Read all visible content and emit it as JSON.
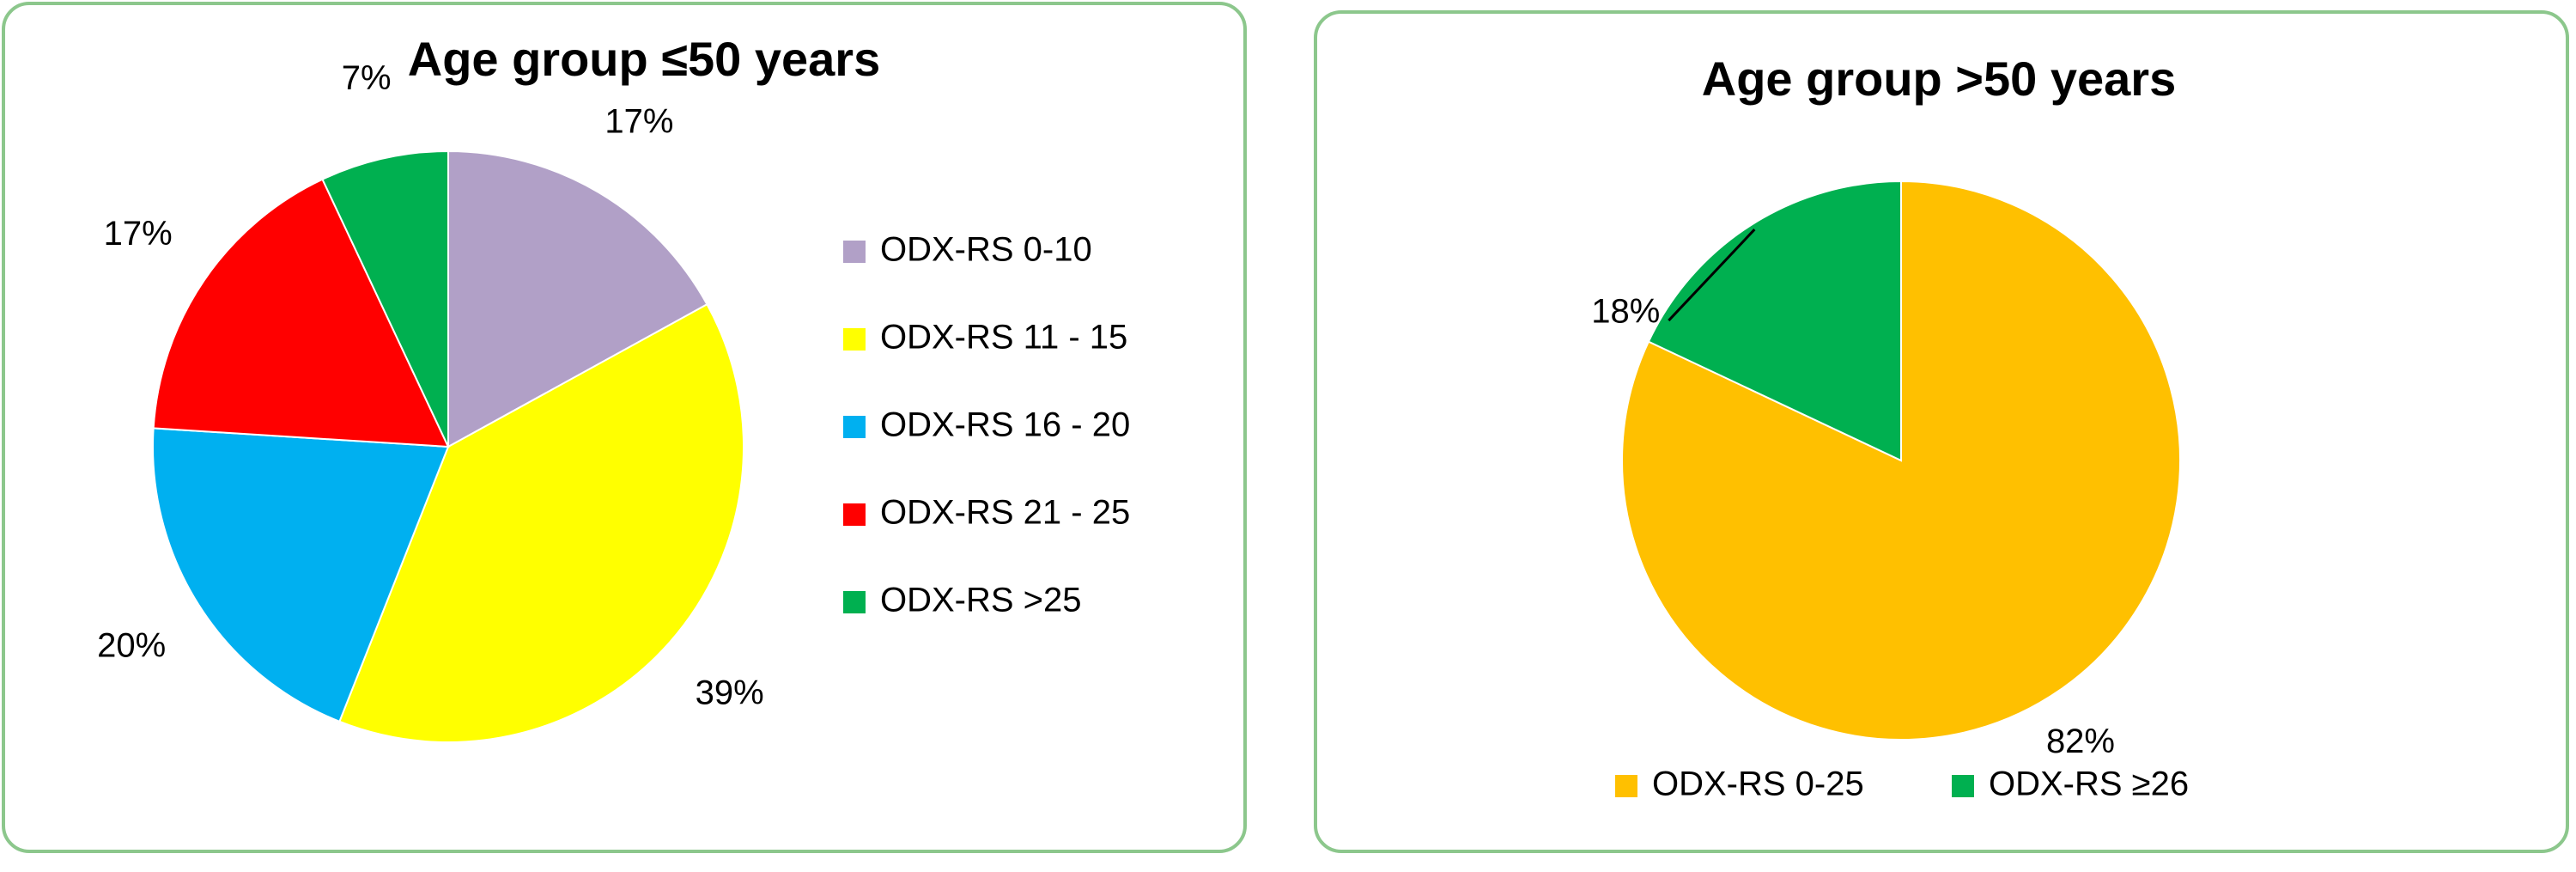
{
  "chart_data": [
    {
      "type": "pie",
      "title": "Age group ≤50 years",
      "categories": [
        "ODX-RS 0-10",
        "ODX-RS 11 - 15",
        "ODX-RS 16 - 20",
        "ODX-RS 21 - 25",
        "ODX-RS >25"
      ],
      "values": [
        17,
        39,
        20,
        17,
        7
      ],
      "value_labels": [
        "17%",
        "39%",
        "20%",
        "17%",
        "7%"
      ],
      "colors": [
        "#b1a0c7",
        "#ffff00",
        "#00b0f0",
        "#ff0000",
        "#00b050"
      ],
      "legend": "right"
    },
    {
      "type": "pie",
      "title": "Age group >50 years",
      "categories": [
        "ODX-RS 0-25",
        "ODX-RS ≥26"
      ],
      "values": [
        82,
        18
      ],
      "value_labels": [
        "82%",
        "18%"
      ],
      "colors": [
        "#ffc000",
        "#00b050"
      ],
      "legend": "bottom"
    }
  ]
}
